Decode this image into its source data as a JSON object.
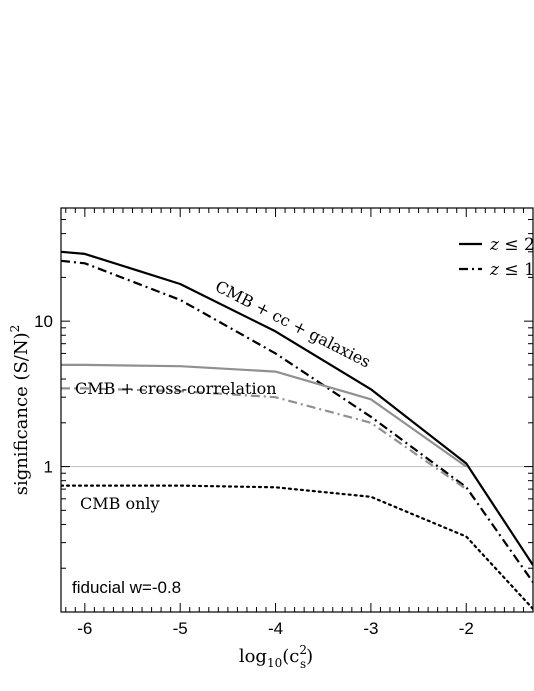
{
  "chart_data": {
    "type": "line",
    "xlabel_base": "log",
    "xlabel_sub": "10",
    "xlabel_arg_base": "(c",
    "xlabel_arg_sup": "2",
    "xlabel_arg_sub": "s",
    "xlabel_arg_close": ")",
    "ylabel_main": "significance (S/N)",
    "ylabel_sup": "2",
    "xlim": [
      -6.25,
      -1.3
    ],
    "ylim": [
      0.1,
      60
    ],
    "yscale": "log",
    "x_major_ticks": [
      -6,
      -5,
      -4,
      -3,
      -2
    ],
    "x_tick_labels": [
      "-6",
      "-5",
      "-4",
      "-3",
      "-2"
    ],
    "y_major_ticks": [
      1,
      10
    ],
    "y_tick_labels": [
      "1",
      "10"
    ],
    "reference_line_y": 1,
    "annotation_fiducial": "fiducial w=-0.8",
    "legend": {
      "placement": "top-right",
      "entries": [
        {
          "label_var": "z",
          "label_rest": " ≤ 2",
          "style": "solid"
        },
        {
          "label_var": "z",
          "label_rest": " ≤ 1",
          "style": "dashdot"
        }
      ]
    },
    "series": [
      {
        "label": "CMB + cc + galaxies",
        "color": "#000000",
        "style": "solid",
        "x": [
          -6.25,
          -6,
          -5,
          -4,
          -3,
          -2,
          -1.3
        ],
        "y": [
          30,
          29,
          18,
          8.5,
          3.4,
          1.05,
          0.21
        ]
      },
      {
        "color": "#000000",
        "style": "dashdot",
        "x": [
          -6.25,
          -6,
          -5,
          -4,
          -3,
          -2,
          -1.3
        ],
        "y": [
          26,
          25,
          14,
          6,
          2.2,
          0.72,
          0.16
        ]
      },
      {
        "label": "CMB + cross-correlation",
        "color": "#909090",
        "style": "solid",
        "x": [
          -6.25,
          -6,
          -5,
          -4,
          -3,
          -2
        ],
        "y": [
          5.0,
          5.0,
          4.9,
          4.5,
          2.9,
          1.0
        ]
      },
      {
        "color": "#909090",
        "style": "dashdot",
        "x": [
          -6.25,
          -6,
          -5,
          -4,
          -3,
          -2
        ],
        "y": [
          3.45,
          3.45,
          3.3,
          3.0,
          2.0,
          0.7
        ]
      },
      {
        "label": "CMB only",
        "color": "#000000",
        "style": "dotted",
        "x": [
          -6.25,
          -6,
          -5,
          -4,
          -3,
          -2,
          -1.3
        ],
        "y": [
          0.74,
          0.74,
          0.74,
          0.72,
          0.62,
          0.33,
          0.105
        ]
      }
    ]
  }
}
